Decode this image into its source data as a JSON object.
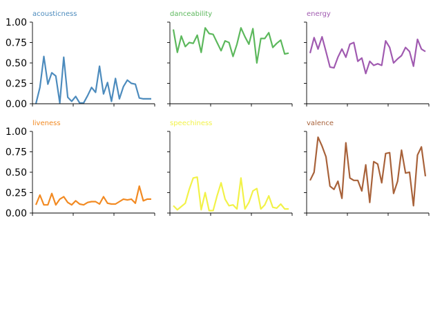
{
  "chart_data": [
    {
      "type": "line",
      "title": "acousticness",
      "color": "#4c8bbd",
      "ylim": [
        0,
        1
      ],
      "y_ticks": [
        "0.00",
        "0.25",
        "0.50",
        "0.75",
        "1.00"
      ],
      "show_y_ticks": true,
      "x": [
        0,
        1,
        2,
        3,
        4,
        5,
        6,
        7,
        8,
        9,
        10,
        11,
        12,
        13,
        14,
        15,
        16,
        17,
        18,
        19,
        20,
        21,
        22,
        23,
        24,
        25,
        26,
        27,
        28,
        29
      ],
      "values": [
        0.0,
        0.2,
        0.58,
        0.24,
        0.38,
        0.34,
        0.01,
        0.57,
        0.08,
        0.03,
        0.09,
        0.01,
        0.01,
        0.1,
        0.2,
        0.14,
        0.46,
        0.12,
        0.26,
        0.03,
        0.31,
        0.06,
        0.21,
        0.29,
        0.25,
        0.24,
        0.07,
        0.06,
        0.06,
        0.06
      ]
    },
    {
      "type": "line",
      "title": "danceability",
      "color": "#5cb85c",
      "ylim": [
        0,
        1
      ],
      "y_ticks": [
        "0.00",
        "0.25",
        "0.50",
        "0.75",
        "1.00"
      ],
      "show_y_ticks": false,
      "x": [
        0,
        1,
        2,
        3,
        4,
        5,
        6,
        7,
        8,
        9,
        10,
        11,
        12,
        13,
        14,
        15,
        16,
        17,
        18,
        19,
        20,
        21,
        22,
        23,
        24,
        25,
        26,
        27,
        28,
        29
      ],
      "values": [
        0.91,
        0.63,
        0.83,
        0.7,
        0.75,
        0.74,
        0.84,
        0.63,
        0.93,
        0.86,
        0.85,
        0.75,
        0.65,
        0.77,
        0.75,
        0.58,
        0.73,
        0.93,
        0.82,
        0.73,
        0.92,
        0.5,
        0.8,
        0.8,
        0.87,
        0.69,
        0.74,
        0.78,
        0.61,
        0.62
      ]
    },
    {
      "type": "line",
      "title": "energy",
      "color": "#a05ab0",
      "ylim": [
        0,
        1
      ],
      "y_ticks": [
        "0.00",
        "0.25",
        "0.50",
        "0.75",
        "1.00"
      ],
      "show_y_ticks": false,
      "x": [
        0,
        1,
        2,
        3,
        4,
        5,
        6,
        7,
        8,
        9,
        10,
        11,
        12,
        13,
        14,
        15,
        16,
        17,
        18,
        19,
        20,
        21,
        22,
        23,
        24,
        25,
        26,
        27,
        28,
        29
      ],
      "values": [
        0.62,
        0.81,
        0.67,
        0.82,
        0.64,
        0.45,
        0.44,
        0.57,
        0.67,
        0.57,
        0.73,
        0.75,
        0.52,
        0.56,
        0.37,
        0.52,
        0.47,
        0.49,
        0.47,
        0.77,
        0.69,
        0.5,
        0.55,
        0.59,
        0.69,
        0.64,
        0.46,
        0.79,
        0.67,
        0.64
      ]
    },
    {
      "type": "line",
      "title": "liveness",
      "color": "#f28a22",
      "ylim": [
        0,
        1
      ],
      "y_ticks": [
        "0.00",
        "0.25",
        "0.50",
        "0.75",
        "1.00"
      ],
      "show_y_ticks": true,
      "x": [
        0,
        1,
        2,
        3,
        4,
        5,
        6,
        7,
        8,
        9,
        10,
        11,
        12,
        13,
        14,
        15,
        16,
        17,
        18,
        19,
        20,
        21,
        22,
        23,
        24,
        25,
        26,
        27,
        28,
        29
      ],
      "values": [
        0.1,
        0.22,
        0.1,
        0.1,
        0.24,
        0.1,
        0.17,
        0.2,
        0.13,
        0.1,
        0.15,
        0.11,
        0.1,
        0.13,
        0.14,
        0.14,
        0.11,
        0.2,
        0.12,
        0.11,
        0.11,
        0.14,
        0.17,
        0.16,
        0.17,
        0.12,
        0.33,
        0.15,
        0.17,
        0.17
      ]
    },
    {
      "type": "line",
      "title": "speechiness",
      "color": "#f2f248",
      "ylim": [
        0,
        1
      ],
      "y_ticks": [
        "0.00",
        "0.25",
        "0.50",
        "0.75",
        "1.00"
      ],
      "show_y_ticks": false,
      "x": [
        0,
        1,
        2,
        3,
        4,
        5,
        6,
        7,
        8,
        9,
        10,
        11,
        12,
        13,
        14,
        15,
        16,
        17,
        18,
        19,
        20,
        21,
        22,
        23,
        24,
        25,
        26,
        27,
        28,
        29
      ],
      "values": [
        0.09,
        0.04,
        0.08,
        0.12,
        0.29,
        0.43,
        0.44,
        0.04,
        0.25,
        0.03,
        0.03,
        0.21,
        0.37,
        0.17,
        0.09,
        0.1,
        0.05,
        0.43,
        0.05,
        0.13,
        0.27,
        0.3,
        0.05,
        0.1,
        0.21,
        0.07,
        0.06,
        0.11,
        0.05,
        0.05
      ]
    },
    {
      "type": "line",
      "title": "valence",
      "color": "#a8623a",
      "ylim": [
        0,
        1
      ],
      "y_ticks": [
        "0.00",
        "0.25",
        "0.50",
        "0.75",
        "1.00"
      ],
      "show_y_ticks": false,
      "x": [
        0,
        1,
        2,
        3,
        4,
        5,
        6,
        7,
        8,
        9,
        10,
        11,
        12,
        13,
        14,
        15,
        16,
        17,
        18,
        19,
        20,
        21,
        22,
        23,
        24,
        25,
        26,
        27,
        28,
        29
      ],
      "values": [
        0.4,
        0.5,
        0.93,
        0.82,
        0.69,
        0.33,
        0.29,
        0.39,
        0.18,
        0.86,
        0.43,
        0.4,
        0.4,
        0.27,
        0.59,
        0.13,
        0.63,
        0.6,
        0.37,
        0.73,
        0.74,
        0.24,
        0.39,
        0.77,
        0.49,
        0.5,
        0.09,
        0.71,
        0.81,
        0.45
      ]
    }
  ]
}
